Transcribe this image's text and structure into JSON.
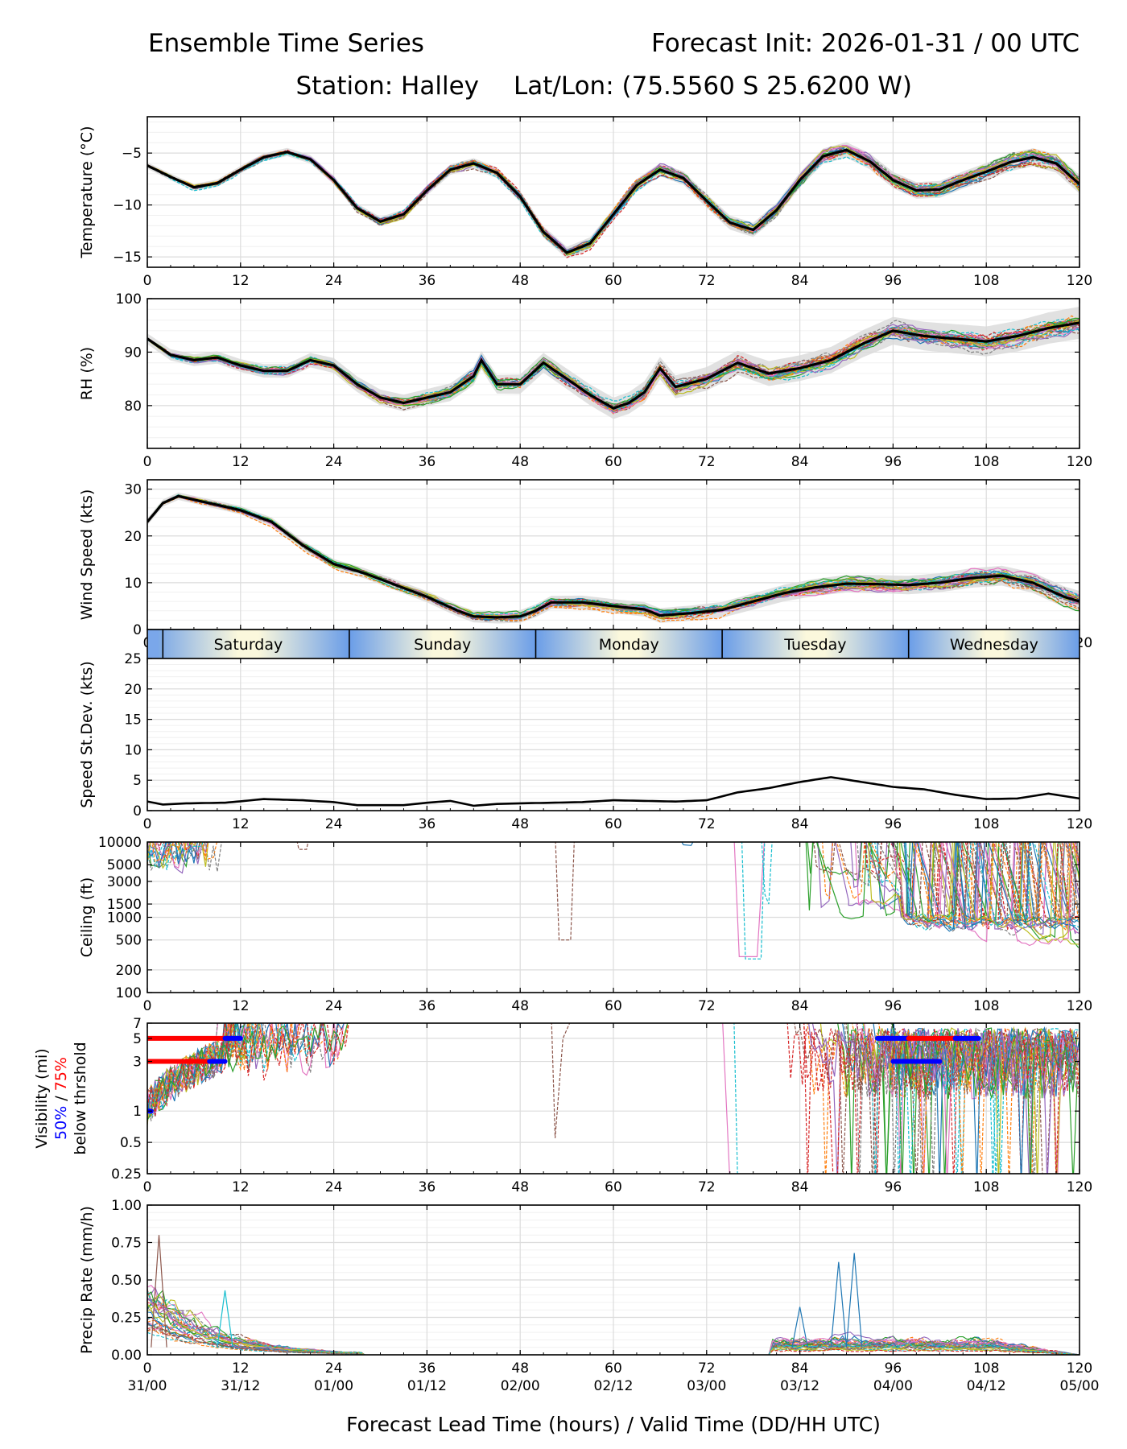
{
  "header": {
    "title_left": "Ensemble Time Series",
    "title_right": "Forecast Init: 2026-01-31 / 00 UTC",
    "station": "Station: Halley",
    "latlon": "Lat/Lon: (75.5560 S 25.6200 W)"
  },
  "x_axis": {
    "ticks": [
      0,
      12,
      24,
      36,
      48,
      60,
      72,
      84,
      96,
      108,
      120
    ],
    "valid_labels": [
      "31/00",
      "31/12",
      "01/00",
      "01/12",
      "02/00",
      "02/12",
      "03/00",
      "03/12",
      "04/00",
      "04/12",
      "05/00"
    ],
    "xlabel": "Forecast Lead Time (hours) / Valid Time (DD/HH UTC)",
    "range": [
      0,
      120
    ]
  },
  "day_bar": {
    "days": [
      {
        "label": "Saturday",
        "start": 0,
        "end": 26
      },
      {
        "label": "Sunday",
        "start": 26,
        "end": 50
      },
      {
        "label": "Monday",
        "start": 50,
        "end": 74
      },
      {
        "label": "Tuesday",
        "start": 74,
        "end": 98
      },
      {
        "label": "Wednesday",
        "start": 98,
        "end": 120
      }
    ],
    "dividers": [
      2,
      26,
      50,
      74,
      98
    ]
  },
  "legend": {
    "vis_label_line1": "Visibility (mi)",
    "vis_label_50": "50%",
    "vis_label_sep": " / ",
    "vis_label_75": "75%",
    "vis_label_line3": "below thrshold",
    "color_50": "#0000ff",
    "color_75": "#ff0000"
  },
  "ensemble_colors": [
    "#1f77b4",
    "#ff7f0e",
    "#2ca02c",
    "#d62728",
    "#9467bd",
    "#8c564b",
    "#e377c2",
    "#7f7f7f",
    "#bcbd22",
    "#17becf"
  ],
  "chart_data": [
    {
      "id": "temperature",
      "type": "line",
      "ylabel": "Temperature (°C)",
      "ylim": [
        -16,
        -1.5
      ],
      "yticks": [
        -15,
        -10,
        -5
      ],
      "mean": {
        "x": [
          0,
          3,
          6,
          9,
          12,
          15,
          18,
          21,
          24,
          27,
          30,
          33,
          36,
          39,
          42,
          45,
          48,
          51,
          54,
          57,
          60,
          63,
          66,
          69,
          72,
          75,
          78,
          81,
          84,
          87,
          90,
          93,
          96,
          99,
          102,
          105,
          108,
          111,
          114,
          117,
          120
        ],
        "y": [
          -6.2,
          -7.3,
          -8.3,
          -7.9,
          -6.6,
          -5.4,
          -4.9,
          -5.6,
          -7.6,
          -10.3,
          -11.6,
          -10.9,
          -8.6,
          -6.6,
          -6.0,
          -6.9,
          -9.2,
          -12.6,
          -14.6,
          -13.7,
          -10.9,
          -8.1,
          -6.6,
          -7.4,
          -9.6,
          -11.7,
          -12.4,
          -10.5,
          -7.6,
          -5.3,
          -4.7,
          -5.8,
          -7.6,
          -8.6,
          -8.5,
          -7.6,
          -6.8,
          -5.9,
          -5.4,
          -6.0,
          -8.0
        ]
      },
      "spread": 1.0,
      "envelope": 0.6
    },
    {
      "id": "rh",
      "type": "line",
      "ylabel": "RH (%)",
      "ylim": [
        72,
        100
      ],
      "yticks": [
        80,
        90,
        100
      ],
      "mean": {
        "x": [
          0,
          3,
          6,
          9,
          12,
          15,
          18,
          21,
          24,
          27,
          30,
          33,
          36,
          39,
          42,
          43,
          45,
          48,
          51,
          54,
          57,
          60,
          62,
          64,
          66,
          68,
          72,
          76,
          80,
          84,
          88,
          92,
          96,
          100,
          104,
          108,
          112,
          116,
          120
        ],
        "y": [
          92.5,
          89.5,
          88.5,
          89,
          87.5,
          86.5,
          86.5,
          88.5,
          87.5,
          84,
          81.5,
          80.5,
          81.5,
          82.5,
          85.5,
          88.5,
          84,
          84,
          88,
          85,
          82,
          79.5,
          80.5,
          82.5,
          87,
          83.5,
          85,
          88,
          86,
          87,
          88.5,
          91.5,
          94,
          93,
          92.5,
          92,
          93,
          94.5,
          95.5
        ]
      },
      "spread": 2.5,
      "envelope": 2.0
    },
    {
      "id": "wind",
      "type": "line",
      "ylabel": "Wind Speed (kts)",
      "ylim": [
        0,
        32
      ],
      "yticks": [
        0,
        10,
        20,
        30
      ],
      "mean": {
        "x": [
          0,
          2,
          4,
          8,
          12,
          16,
          20,
          24,
          28,
          32,
          36,
          40,
          42,
          45,
          48,
          50,
          52,
          56,
          60,
          64,
          66,
          70,
          74,
          78,
          82,
          86,
          90,
          94,
          98,
          102,
          106,
          110,
          114,
          118,
          120
        ],
        "y": [
          23,
          27,
          28.5,
          27,
          25.5,
          23,
          18,
          14,
          12,
          9.5,
          7,
          4,
          2.8,
          2.6,
          2.8,
          4,
          5.8,
          5.8,
          5,
          4.3,
          3,
          3.5,
          4.2,
          6,
          7.8,
          9,
          9.8,
          9.7,
          9.5,
          10,
          11,
          11.5,
          10,
          7,
          6
        ]
      },
      "spread": 2.0,
      "envelope": 1.5
    },
    {
      "id": "speed_std",
      "type": "line",
      "ylabel": "Speed St.Dev. (kts)",
      "ylim": [
        0,
        25
      ],
      "yticks": [
        0,
        5,
        10,
        15,
        20,
        25
      ],
      "mean": {
        "x": [
          0,
          2,
          5,
          10,
          15,
          20,
          24,
          27,
          33,
          36,
          39,
          42,
          45,
          48,
          52,
          56,
          60,
          64,
          68,
          72,
          76,
          80,
          84,
          88,
          92,
          96,
          100,
          104,
          108,
          112,
          116,
          120
        ],
        "y": [
          1.5,
          1.0,
          1.2,
          1.3,
          1.9,
          1.7,
          1.4,
          0.9,
          0.9,
          1.3,
          1.6,
          0.8,
          1.1,
          1.2,
          1.3,
          1.4,
          1.7,
          1.6,
          1.5,
          1.7,
          3.0,
          3.7,
          4.7,
          5.5,
          4.7,
          3.9,
          3.5,
          2.6,
          1.9,
          2.0,
          2.8,
          2.0
        ]
      }
    },
    {
      "id": "ceiling",
      "type": "line",
      "ylabel": "Ceiling (ft)",
      "scale": "log",
      "ylim": [
        100,
        10000
      ],
      "yticks": [
        100,
        200,
        500,
        1000,
        1500,
        3000,
        5000,
        10000
      ]
    },
    {
      "id": "visibility",
      "type": "line",
      "ylabel": "Visibility (mi)",
      "scale": "log",
      "ylim": [
        0.25,
        7
      ],
      "yticks": [
        0.25,
        0.5,
        1,
        3,
        5,
        7
      ],
      "threshold_bars": [
        {
          "level": 5,
          "color": "red",
          "start": 0,
          "end": 10
        },
        {
          "level": 5,
          "color": "blue",
          "start": 10,
          "end": 12
        },
        {
          "level": 3,
          "color": "red",
          "start": 0,
          "end": 8
        },
        {
          "level": 3,
          "color": "blue",
          "start": 8,
          "end": 10
        },
        {
          "level": 5,
          "color": "blue",
          "start": 94,
          "end": 98
        },
        {
          "level": 5,
          "color": "red",
          "start": 98,
          "end": 104
        },
        {
          "level": 5,
          "color": "blue",
          "start": 104,
          "end": 107
        },
        {
          "level": 3,
          "color": "blue",
          "start": 96,
          "end": 102
        },
        {
          "level": 1,
          "color": "blue",
          "start": 0,
          "end": 0.5
        }
      ]
    },
    {
      "id": "precip",
      "type": "line",
      "ylabel": "Precip Rate (mm/h)",
      "ylim": [
        0,
        1
      ],
      "yticks": [
        0.0,
        0.25,
        0.5,
        0.75,
        1.0
      ],
      "ytick_labels": [
        "0.00",
        "0.25",
        "0.50",
        "0.75",
        "1.00"
      ]
    }
  ]
}
